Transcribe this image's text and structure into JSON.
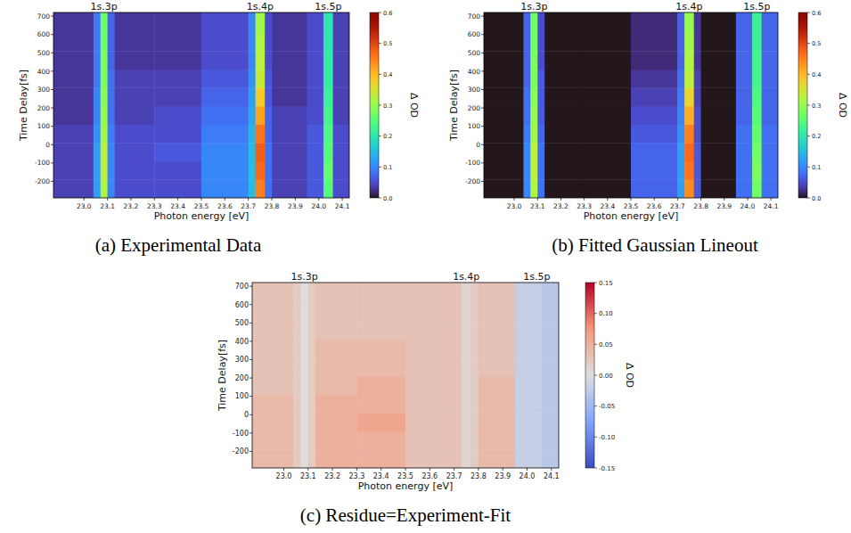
{
  "chart_data": [
    {
      "type": "heatmap",
      "title": "(a) Experimental Data",
      "x_label": "Photon energy [eV]",
      "y_label": "Time Delay[fs]",
      "color": "turbo",
      "xlim": [
        22.87,
        24.13
      ],
      "ylim": [
        -290,
        720
      ],
      "xticks": [
        {
          "value": 23,
          "label": "23.0"
        },
        23.1,
        23.2,
        23.3,
        23.4,
        23.5,
        23.6,
        23.7,
        23.8,
        23.9,
        {
          "value": 24,
          "label": "24.0"
        },
        24.1
      ],
      "yticks": [
        -200,
        -100,
        0,
        100,
        200,
        300,
        400,
        500,
        600,
        700
      ],
      "x_edges": [
        22.87,
        23.04,
        23.07,
        23.1,
        23.13,
        23.3,
        23.5,
        23.7,
        23.73,
        23.77,
        23.8,
        23.95,
        24.02,
        24.06,
        24.13
      ],
      "y_edges": [
        -290,
        -190,
        -90,
        10,
        110,
        210,
        310,
        410,
        510,
        610,
        720
      ],
      "cells": [
        [
          0.04,
          0.12,
          0.32,
          0.1,
          0.05,
          0.05,
          0.1,
          0.15,
          0.45,
          0.08,
          0.04,
          0.06,
          0.25,
          0.05
        ],
        [
          0.04,
          0.12,
          0.33,
          0.1,
          0.05,
          0.05,
          0.1,
          0.15,
          0.47,
          0.08,
          0.04,
          0.06,
          0.26,
          0.05
        ],
        [
          0.04,
          0.12,
          0.33,
          0.1,
          0.05,
          0.06,
          0.1,
          0.15,
          0.48,
          0.08,
          0.04,
          0.06,
          0.25,
          0.05
        ],
        [
          0.04,
          0.11,
          0.31,
          0.09,
          0.05,
          0.05,
          0.09,
          0.14,
          0.46,
          0.07,
          0.04,
          0.06,
          0.24,
          0.05
        ],
        [
          0.03,
          0.1,
          0.3,
          0.08,
          0.04,
          0.05,
          0.08,
          0.13,
          0.42,
          0.07,
          0.04,
          0.05,
          0.23,
          0.04
        ],
        [
          0.03,
          0.1,
          0.29,
          0.08,
          0.04,
          0.04,
          0.07,
          0.12,
          0.38,
          0.06,
          0.03,
          0.05,
          0.22,
          0.04
        ],
        [
          0.03,
          0.09,
          0.28,
          0.08,
          0.04,
          0.04,
          0.06,
          0.11,
          0.34,
          0.06,
          0.03,
          0.05,
          0.21,
          0.04
        ],
        [
          0.03,
          0.09,
          0.28,
          0.07,
          0.03,
          0.03,
          0.05,
          0.1,
          0.33,
          0.05,
          0.03,
          0.05,
          0.21,
          0.04
        ],
        [
          0.03,
          0.09,
          0.27,
          0.07,
          0.03,
          0.03,
          0.05,
          0.1,
          0.32,
          0.05,
          0.03,
          0.05,
          0.2,
          0.04
        ],
        [
          0.03,
          0.09,
          0.27,
          0.07,
          0.03,
          0.03,
          0.05,
          0.1,
          0.31,
          0.05,
          0.03,
          0.05,
          0.2,
          0.04
        ]
      ],
      "colorbar": {
        "label": "Δ OD",
        "range": [
          0,
          0.6
        ],
        "ticks": [
          {
            "value": 0,
            "label": "0.0"
          },
          0.1,
          0.2,
          0.3,
          0.4,
          0.5,
          0.6
        ]
      },
      "annotations": [
        {
          "text": "1s.3p",
          "x": 23.085
        },
        {
          "text": "1s.4p",
          "x": 23.75
        },
        {
          "text": "1s.5p",
          "x": 24.04
        }
      ]
    },
    {
      "type": "heatmap",
      "title": "(b) Fitted Gaussian Lineout",
      "x_label": "Photon energy [eV]",
      "y_label": "Time Delay[fs]",
      "color": "turbo",
      "xlim": [
        22.87,
        24.13
      ],
      "ylim": [
        -290,
        720
      ],
      "xticks": [
        {
          "value": 23,
          "label": "23.0"
        },
        23.1,
        23.2,
        23.3,
        23.4,
        23.5,
        23.6,
        23.7,
        23.8,
        23.9,
        {
          "value": 24,
          "label": "24.0"
        },
        24.1
      ],
      "yticks": [
        -200,
        -100,
        0,
        100,
        200,
        300,
        400,
        500,
        600,
        700
      ],
      "x_edges": [
        22.87,
        23.04,
        23.07,
        23.1,
        23.13,
        23.3,
        23.5,
        23.7,
        23.73,
        23.77,
        23.8,
        23.95,
        24.02,
        24.06,
        24.13
      ],
      "y_edges": [
        -290,
        -190,
        -90,
        10,
        110,
        210,
        310,
        410,
        510,
        610,
        720
      ],
      "cells": [
        [
          0,
          0.1,
          0.32,
          0.08,
          0,
          0,
          0.07,
          0.12,
          0.44,
          0.06,
          0,
          0.08,
          0.27,
          0.08
        ],
        [
          0,
          0.1,
          0.33,
          0.08,
          0,
          0,
          0.07,
          0.12,
          0.46,
          0.06,
          0,
          0.08,
          0.28,
          0.08
        ],
        [
          0,
          0.1,
          0.33,
          0.08,
          0,
          0,
          0.07,
          0.12,
          0.47,
          0.06,
          0,
          0.08,
          0.27,
          0.08
        ],
        [
          0,
          0.09,
          0.31,
          0.07,
          0,
          0,
          0.06,
          0.11,
          0.45,
          0.05,
          0,
          0.08,
          0.26,
          0.08
        ],
        [
          0,
          0.08,
          0.3,
          0.06,
          0,
          0,
          0.05,
          0.1,
          0.41,
          0.05,
          0,
          0.07,
          0.25,
          0.07
        ],
        [
          0,
          0.08,
          0.29,
          0.06,
          0,
          0,
          0.04,
          0.09,
          0.37,
          0.04,
          0,
          0.07,
          0.24,
          0.07
        ],
        [
          0,
          0.07,
          0.28,
          0.06,
          0,
          0,
          0.03,
          0.08,
          0.33,
          0.04,
          0,
          0.07,
          0.23,
          0.07
        ],
        [
          0,
          0.07,
          0.28,
          0.05,
          0,
          0,
          0.02,
          0.07,
          0.32,
          0.03,
          0,
          0.07,
          0.23,
          0.07
        ],
        [
          0,
          0.07,
          0.27,
          0.05,
          0,
          0,
          0.02,
          0.07,
          0.31,
          0.03,
          0,
          0.07,
          0.22,
          0.07
        ],
        [
          0,
          0.07,
          0.27,
          0.05,
          0,
          0,
          0.02,
          0.07,
          0.3,
          0.03,
          0,
          0.07,
          0.22,
          0.07
        ]
      ],
      "colorbar": {
        "label": "Δ OD",
        "range": [
          0,
          0.6
        ],
        "ticks": [
          {
            "value": 0,
            "label": "0.0"
          },
          0.1,
          0.2,
          0.3,
          0.4,
          0.5,
          0.6
        ]
      },
      "annotations": [
        {
          "text": "1s.3p",
          "x": 23.085
        },
        {
          "text": "1s.4p",
          "x": 23.75
        },
        {
          "text": "1s.5p",
          "x": 24.04
        }
      ]
    },
    {
      "type": "heatmap",
      "title": "(c) Residue=Experiment-Fit",
      "x_label": "Photon energy [eV]",
      "y_label": "Time Delay[fs]",
      "color": "coolwarm",
      "xlim": [
        22.87,
        24.13
      ],
      "ylim": [
        -290,
        720
      ],
      "xticks": [
        {
          "value": 23,
          "label": "23.0"
        },
        23.1,
        23.2,
        23.3,
        23.4,
        23.5,
        23.6,
        23.7,
        23.8,
        23.9,
        {
          "value": 24,
          "label": "24.0"
        },
        24.1
      ],
      "yticks": [
        -200,
        -100,
        0,
        100,
        200,
        300,
        400,
        500,
        600,
        700
      ],
      "x_edges": [
        22.87,
        23.04,
        23.07,
        23.1,
        23.13,
        23.3,
        23.5,
        23.7,
        23.73,
        23.77,
        23.8,
        23.95,
        24.02,
        24.06,
        24.13
      ],
      "y_edges": [
        -290,
        -190,
        -90,
        10,
        110,
        210,
        310,
        410,
        510,
        610,
        720
      ],
      "cells": [
        [
          0.04,
          0.02,
          0,
          0.02,
          0.05,
          0.05,
          0.03,
          0.03,
          0.01,
          0.02,
          0.04,
          -0.02,
          -0.02,
          -0.03
        ],
        [
          0.04,
          0.02,
          0,
          0.02,
          0.05,
          0.05,
          0.03,
          0.03,
          0.01,
          0.02,
          0.04,
          -0.02,
          -0.02,
          -0.03
        ],
        [
          0.04,
          0.02,
          0,
          0.02,
          0.05,
          0.06,
          0.03,
          0.03,
          0.01,
          0.02,
          0.04,
          -0.02,
          -0.02,
          -0.03
        ],
        [
          0.04,
          0.02,
          0,
          0.02,
          0.05,
          0.05,
          0.03,
          0.03,
          0.01,
          0.02,
          0.04,
          -0.02,
          -0.02,
          -0.03
        ],
        [
          0.03,
          0.02,
          0,
          0.02,
          0.04,
          0.05,
          0.03,
          0.03,
          0.01,
          0.02,
          0.04,
          -0.02,
          -0.02,
          -0.03
        ],
        [
          0.03,
          0.02,
          0,
          0.02,
          0.04,
          0.04,
          0.03,
          0.03,
          0.01,
          0.02,
          0.03,
          -0.02,
          -0.02,
          -0.03
        ],
        [
          0.03,
          0.02,
          0,
          0.02,
          0.04,
          0.04,
          0.03,
          0.03,
          0.01,
          0.02,
          0.03,
          -0.02,
          -0.02,
          -0.03
        ],
        [
          0.03,
          0.02,
          0,
          0.02,
          0.03,
          0.03,
          0.03,
          0.03,
          0.01,
          0.02,
          0.03,
          -0.02,
          -0.02,
          -0.03
        ],
        [
          0.03,
          0.02,
          0,
          0.02,
          0.03,
          0.03,
          0.03,
          0.03,
          0.01,
          0.02,
          0.03,
          -0.02,
          -0.02,
          -0.03
        ],
        [
          0.03,
          0.02,
          0,
          0.02,
          0.03,
          0.03,
          0.03,
          0.03,
          0.01,
          0.02,
          0.03,
          -0.02,
          -0.02,
          -0.03
        ]
      ],
      "colorbar": {
        "label": "Δ OD",
        "range": [
          -0.15,
          0.15
        ],
        "ticks": [
          -0.15,
          {
            "value": -0.1,
            "label": "-0.10"
          },
          -0.05,
          {
            "value": 0,
            "label": "0.00"
          },
          0.05,
          {
            "value": 0.1,
            "label": "0.10"
          },
          0.15
        ]
      },
      "annotations": [
        {
          "text": "1s.3p",
          "x": 23.085
        },
        {
          "text": "1s.4p",
          "x": 23.75
        },
        {
          "text": "1s.5p",
          "x": 24.04
        }
      ]
    }
  ]
}
